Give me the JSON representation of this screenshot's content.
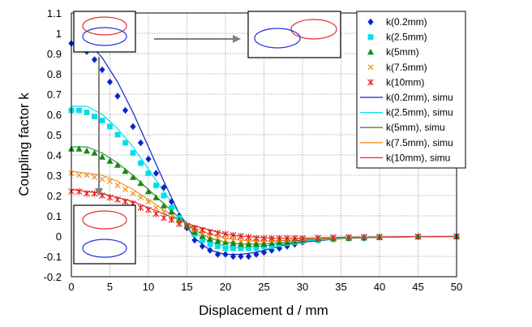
{
  "chart_data": {
    "type": "line",
    "xlabel": "Displacement d / mm",
    "ylabel": "Coupling factor k",
    "xlim": [
      0,
      50
    ],
    "ylim": [
      -0.2,
      1.1
    ],
    "xticks": [
      0,
      5,
      10,
      15,
      20,
      25,
      30,
      35,
      40,
      45,
      50
    ],
    "yticks": [
      -0.2,
      -0.1,
      0,
      0.1,
      0.2,
      0.3,
      0.4,
      0.5,
      0.6,
      0.7,
      0.8,
      0.9,
      1,
      1.1
    ],
    "grid": true,
    "legend_position": "top-right",
    "measured": [
      {
        "name": "k(0.2mm)",
        "color": "#0b24c9",
        "marker": "diamond",
        "x": [
          0,
          1,
          2,
          3,
          4,
          5,
          6,
          7,
          8,
          9,
          10,
          11,
          12,
          13,
          14,
          15,
          16,
          17,
          18,
          19,
          20,
          21,
          22,
          23,
          24,
          25,
          26,
          27,
          28,
          29,
          30,
          32,
          34,
          36,
          38,
          40,
          45,
          50
        ],
        "y": [
          0.95,
          0.94,
          0.91,
          0.87,
          0.82,
          0.76,
          0.69,
          0.62,
          0.54,
          0.46,
          0.38,
          0.31,
          0.24,
          0.17,
          0.1,
          0.04,
          -0.02,
          -0.05,
          -0.07,
          -0.09,
          -0.09,
          -0.1,
          -0.1,
          -0.1,
          -0.09,
          -0.08,
          -0.07,
          -0.06,
          -0.05,
          -0.04,
          -0.03,
          -0.02,
          -0.015,
          -0.01,
          -0.01,
          -0.005,
          -0.003,
          -0.002
        ]
      },
      {
        "name": "k(2.5mm)",
        "color": "#00e0e8",
        "marker": "square",
        "x": [
          0,
          1,
          2,
          3,
          4,
          5,
          6,
          7,
          8,
          9,
          10,
          11,
          12,
          13,
          14,
          15,
          16,
          17,
          18,
          19,
          20,
          21,
          22,
          23,
          24,
          25,
          26,
          27,
          28,
          29,
          30,
          32,
          34,
          36,
          38,
          40,
          45,
          50
        ],
        "y": [
          0.62,
          0.62,
          0.61,
          0.59,
          0.57,
          0.54,
          0.5,
          0.46,
          0.41,
          0.36,
          0.31,
          0.25,
          0.2,
          0.14,
          0.09,
          0.05,
          0.01,
          -0.02,
          -0.04,
          -0.05,
          -0.06,
          -0.06,
          -0.06,
          -0.06,
          -0.06,
          -0.05,
          -0.05,
          -0.04,
          -0.035,
          -0.03,
          -0.025,
          -0.02,
          -0.015,
          -0.01,
          -0.008,
          -0.006,
          -0.003,
          -0.002
        ]
      },
      {
        "name": "k(5mm)",
        "color": "#138a13",
        "marker": "triangle",
        "x": [
          0,
          1,
          2,
          3,
          4,
          5,
          6,
          7,
          8,
          9,
          10,
          11,
          12,
          13,
          14,
          15,
          16,
          17,
          18,
          19,
          20,
          21,
          22,
          23,
          24,
          25,
          26,
          27,
          28,
          29,
          30,
          32,
          34,
          36,
          38,
          40,
          45,
          50
        ],
        "y": [
          0.43,
          0.43,
          0.42,
          0.41,
          0.39,
          0.37,
          0.35,
          0.32,
          0.29,
          0.26,
          0.22,
          0.19,
          0.15,
          0.12,
          0.08,
          0.05,
          0.02,
          0,
          -0.015,
          -0.025,
          -0.03,
          -0.035,
          -0.04,
          -0.04,
          -0.04,
          -0.04,
          -0.035,
          -0.03,
          -0.03,
          -0.025,
          -0.02,
          -0.015,
          -0.012,
          -0.01,
          -0.008,
          -0.006,
          -0.003,
          -0.002
        ]
      },
      {
        "name": "k(7.5mm)",
        "color": "#ff8000",
        "marker": "x",
        "x": [
          0,
          1,
          2,
          3,
          4,
          5,
          6,
          7,
          8,
          9,
          10,
          11,
          12,
          13,
          14,
          15,
          16,
          17,
          18,
          19,
          20,
          21,
          22,
          23,
          24,
          25,
          26,
          27,
          28,
          29,
          30,
          32,
          34,
          36,
          38,
          40,
          45,
          50
        ],
        "y": [
          0.31,
          0.3,
          0.3,
          0.29,
          0.28,
          0.27,
          0.25,
          0.23,
          0.21,
          0.19,
          0.17,
          0.14,
          0.12,
          0.09,
          0.07,
          0.05,
          0.03,
          0.01,
          0,
          -0.01,
          -0.02,
          -0.02,
          -0.025,
          -0.025,
          -0.025,
          -0.025,
          -0.025,
          -0.02,
          -0.02,
          -0.02,
          -0.015,
          -0.012,
          -0.01,
          -0.008,
          -0.006,
          -0.005,
          -0.003,
          -0.002
        ]
      },
      {
        "name": "k(10mm)",
        "color": "#e01818",
        "marker": "asterisk",
        "x": [
          0,
          1,
          2,
          3,
          4,
          5,
          6,
          7,
          8,
          9,
          10,
          11,
          12,
          13,
          14,
          15,
          16,
          17,
          18,
          19,
          20,
          21,
          22,
          23,
          24,
          25,
          26,
          27,
          28,
          29,
          30,
          32,
          34,
          36,
          38,
          40,
          45,
          50
        ],
        "y": [
          0.22,
          0.22,
          0.21,
          0.21,
          0.2,
          0.19,
          0.18,
          0.17,
          0.16,
          0.14,
          0.13,
          0.11,
          0.09,
          0.08,
          0.06,
          0.05,
          0.04,
          0.03,
          0.02,
          0.015,
          0.01,
          0.005,
          0,
          -0.005,
          -0.01,
          -0.01,
          -0.01,
          -0.01,
          -0.01,
          -0.01,
          -0.01,
          -0.008,
          -0.006,
          -0.005,
          -0.004,
          -0.003,
          -0.002,
          -0.001
        ]
      }
    ],
    "simulated": [
      {
        "name": "k(0.2mm), simu",
        "color": "#0b24c9",
        "x": [
          1,
          2,
          4,
          6,
          8,
          10,
          12,
          14,
          16,
          18,
          20,
          22,
          24,
          26,
          28,
          30,
          35,
          40,
          45,
          50
        ],
        "y": [
          0.98,
          0.96,
          0.88,
          0.76,
          0.61,
          0.44,
          0.27,
          0.11,
          -0.01,
          -0.07,
          -0.09,
          -0.09,
          -0.08,
          -0.06,
          -0.04,
          -0.03,
          -0.012,
          -0.006,
          -0.003,
          -0.002
        ]
      },
      {
        "name": "k(2.5mm), simu",
        "color": "#00e0e8",
        "x": [
          0,
          2,
          4,
          6,
          8,
          10,
          12,
          14,
          16,
          18,
          20,
          22,
          24,
          26,
          28,
          30,
          35,
          40,
          45,
          50
        ],
        "y": [
          0.64,
          0.64,
          0.6,
          0.53,
          0.44,
          0.33,
          0.22,
          0.11,
          0.02,
          -0.03,
          -0.05,
          -0.06,
          -0.05,
          -0.045,
          -0.035,
          -0.025,
          -0.012,
          -0.006,
          -0.003,
          -0.002
        ]
      },
      {
        "name": "k(5mm), simu",
        "color": "#3c8f3c",
        "x": [
          0,
          2,
          4,
          6,
          8,
          10,
          12,
          14,
          16,
          18,
          20,
          22,
          24,
          26,
          28,
          30,
          35,
          40,
          45,
          50
        ],
        "y": [
          0.44,
          0.44,
          0.41,
          0.36,
          0.3,
          0.23,
          0.16,
          0.09,
          0.03,
          -0.01,
          -0.03,
          -0.04,
          -0.04,
          -0.035,
          -0.03,
          -0.02,
          -0.01,
          -0.006,
          -0.003,
          -0.002
        ]
      },
      {
        "name": "k(7.5mm), simu",
        "color": "#f09020",
        "x": [
          0,
          2,
          4,
          6,
          8,
          10,
          12,
          14,
          16,
          18,
          20,
          22,
          24,
          26,
          28,
          30,
          35,
          40,
          45,
          50
        ],
        "y": [
          0.32,
          0.31,
          0.3,
          0.27,
          0.23,
          0.18,
          0.13,
          0.08,
          0.04,
          0.01,
          -0.01,
          -0.02,
          -0.025,
          -0.025,
          -0.02,
          -0.015,
          -0.008,
          -0.005,
          -0.003,
          -0.002
        ]
      },
      {
        "name": "k(10mm), simu",
        "color": "#e03030",
        "x": [
          0,
          2,
          4,
          6,
          8,
          10,
          12,
          14,
          16,
          18,
          20,
          22,
          24,
          26,
          28,
          30,
          35,
          40,
          45,
          50
        ],
        "y": [
          0.23,
          0.22,
          0.21,
          0.19,
          0.17,
          0.14,
          0.11,
          0.08,
          0.05,
          0.03,
          0.01,
          0,
          -0.005,
          -0.01,
          -0.01,
          -0.01,
          -0.006,
          -0.004,
          -0.002,
          -0.001
        ]
      }
    ]
  },
  "insets": {
    "aligned": {
      "top_color": "#e03030",
      "bottom_color": "#2030e0"
    },
    "displaced": {
      "top_color": "#e03030",
      "bottom_color": "#2030e0"
    },
    "separated": {
      "top_color": "#e03030",
      "bottom_color": "#2030e0"
    },
    "arrow_color": "#808080"
  }
}
